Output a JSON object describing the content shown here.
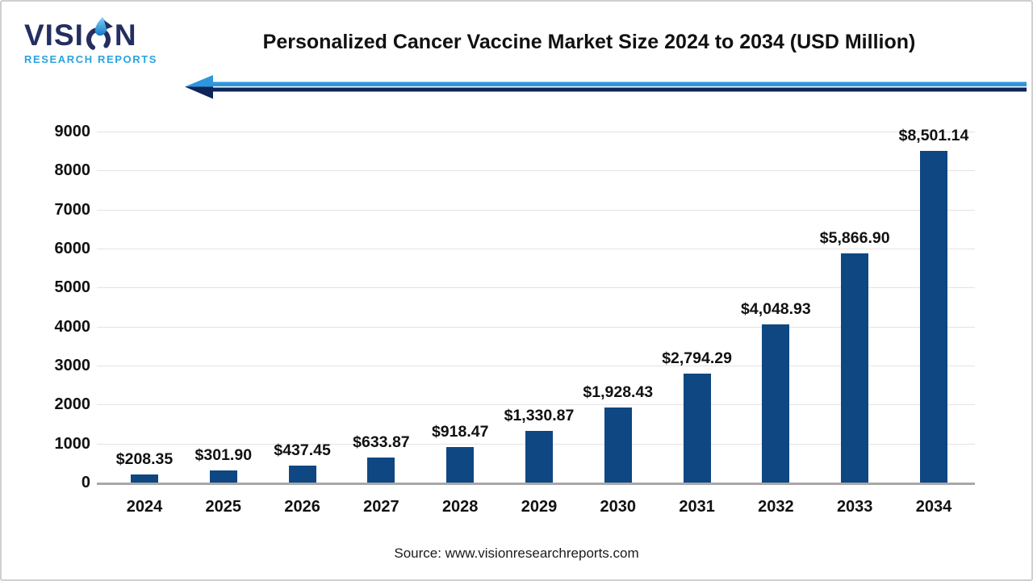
{
  "logo": {
    "word_part1": "VISI",
    "word_part2": "N",
    "subtitle": "RESEARCH REPORTS"
  },
  "header": {
    "title": "Personalized Cancer Vaccine Market Size 2024 to 2034 (USD Million)"
  },
  "footer": {
    "source": "Source: www.visionresearchreports.com"
  },
  "colors": {
    "bar": "#0e4782",
    "accent_light_blue": "#2e96dd",
    "accent_navy": "#0d2557",
    "logo_navy": "#242e60",
    "logo_blue": "#2aa3e1",
    "gridline": "#e3e3e3",
    "axis": "#a8a8a8",
    "text": "#111111"
  },
  "chart_data": {
    "type": "bar",
    "title": "Personalized Cancer Vaccine Market Size 2024 to 2034 (USD Million)",
    "categories": [
      "2024",
      "2025",
      "2026",
      "2027",
      "2028",
      "2029",
      "2030",
      "2031",
      "2032",
      "2033",
      "2034"
    ],
    "values": [
      208.35,
      301.9,
      437.45,
      633.87,
      918.47,
      1330.87,
      1928.43,
      2794.29,
      4048.93,
      5866.9,
      8501.14
    ],
    "labels": [
      "$208.35",
      "$301.90",
      "$437.45",
      "$633.87",
      "$918.47",
      "$1,330.87",
      "$1,928.43",
      "$2,794.29",
      "$4,048.93",
      "$5,866.90",
      "$8,501.14"
    ],
    "xlabel": "",
    "ylabel": "",
    "ylim": [
      0,
      9000
    ],
    "yticks": [
      0,
      1000,
      2000,
      3000,
      4000,
      5000,
      6000,
      7000,
      8000,
      9000
    ],
    "grid": true,
    "legend": "none",
    "bar_color": "#0e4782"
  }
}
